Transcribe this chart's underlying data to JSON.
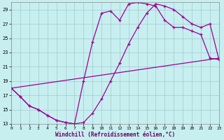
{
  "xlabel": "Windchill (Refroidissement éolien,°C)",
  "bg_color": "#c8eff0",
  "grid_color": "#a0c8cc",
  "line_color": "#990099",
  "xlim": [
    0,
    23
  ],
  "ylim": [
    13,
    30
  ],
  "xticks": [
    0,
    1,
    2,
    3,
    4,
    5,
    6,
    7,
    8,
    9,
    10,
    11,
    12,
    13,
    14,
    15,
    16,
    17,
    18,
    19,
    20,
    21,
    22,
    23
  ],
  "yticks": [
    13,
    15,
    17,
    19,
    21,
    23,
    25,
    27,
    29
  ],
  "curve1_x": [
    0,
    1,
    2,
    3,
    4,
    5,
    6,
    7,
    8,
    9,
    10,
    11,
    12,
    13,
    14,
    15,
    16,
    17,
    18,
    19,
    20,
    21,
    22,
    23
  ],
  "curve1_y": [
    18.0,
    16.8,
    15.5,
    15.0,
    14.2,
    13.5,
    13.2,
    13.0,
    13.2,
    14.5,
    16.5,
    19.0,
    21.5,
    24.2,
    26.5,
    28.5,
    29.8,
    29.5,
    29.0,
    28.0,
    27.0,
    26.5,
    27.0,
    22.0
  ],
  "curve2_x": [
    0,
    1,
    2,
    3,
    4,
    5,
    6,
    7,
    8,
    9,
    10,
    11,
    12,
    13,
    14,
    15,
    16,
    17,
    18,
    19,
    20,
    21,
    22,
    23
  ],
  "curve2_y": [
    18.0,
    16.8,
    15.5,
    15.0,
    14.2,
    13.5,
    13.2,
    13.0,
    19.0,
    24.5,
    28.5,
    28.8,
    27.5,
    29.8,
    30.0,
    29.8,
    29.5,
    27.5,
    26.5,
    26.5,
    26.0,
    25.5,
    22.2,
    22.0
  ],
  "curve3_x": [
    0,
    23
  ],
  "curve3_y": [
    18.0,
    22.2
  ]
}
